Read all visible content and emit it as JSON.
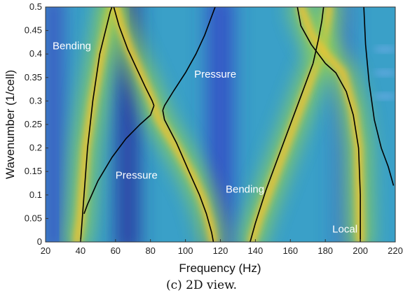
{
  "chart_data": {
    "type": "heatmap",
    "title": "",
    "xlabel": "Frequency (Hz)",
    "ylabel": "Wavenumber (1/cell)",
    "xlim": [
      20,
      220
    ],
    "ylim": [
      0,
      0.5
    ],
    "xticks": [
      "20",
      "40",
      "60",
      "80",
      "100",
      "120",
      "140",
      "160",
      "180",
      "200",
      "220"
    ],
    "yticks": [
      "0",
      "0.05",
      "0.1",
      "0.15",
      "0.2",
      "0.25",
      "0.3",
      "0.35",
      "0.4",
      "0.45",
      "0.5"
    ],
    "grid": false,
    "colormap": "parula",
    "background_color": "#3aa0c8",
    "curve_color": "#000000",
    "ridges": [
      {
        "x": [
          38,
          40,
          41,
          43,
          47,
          52,
          56,
          58
        ],
        "y": [
          0.0,
          0.05,
          0.1,
          0.2,
          0.3,
          0.4,
          0.47,
          0.5
        ]
      },
      {
        "x": [
          60,
          63,
          68,
          74,
          80,
          82,
          85,
          95,
          104,
          110,
          114,
          116
        ],
        "y": [
          0.5,
          0.46,
          0.41,
          0.36,
          0.31,
          0.29,
          0.26,
          0.2,
          0.14,
          0.09,
          0.04,
          0.0
        ]
      },
      {
        "x": [
          138,
          142,
          150,
          158,
          166,
          172,
          178,
          180,
          182
        ],
        "y": [
          0.0,
          0.05,
          0.13,
          0.21,
          0.29,
          0.35,
          0.4,
          0.45,
          0.5
        ]
      },
      {
        "x": [
          166,
          172,
          180,
          190,
          196,
          199,
          200
        ],
        "y": [
          0.5,
          0.44,
          0.4,
          0.36,
          0.28,
          0.2,
          0.0
        ]
      }
    ],
    "curves": [
      {
        "x": [
          40,
          41,
          42,
          44,
          47,
          51,
          55,
          57,
          58
        ],
        "y": [
          0.0,
          0.05,
          0.1,
          0.2,
          0.3,
          0.4,
          0.46,
          0.49,
          0.5
        ]
      },
      {
        "x": [
          42,
          44,
          50,
          58,
          66,
          74,
          80,
          82
        ],
        "y": [
          0.06,
          0.08,
          0.13,
          0.18,
          0.22,
          0.25,
          0.27,
          0.29
        ]
      },
      {
        "x": [
          59,
          62,
          67,
          72,
          77,
          81,
          82
        ],
        "y": [
          0.5,
          0.46,
          0.41,
          0.37,
          0.33,
          0.3,
          0.29
        ]
      },
      {
        "x": [
          87,
          88,
          93,
          100,
          106,
          111,
          115,
          117
        ],
        "y": [
          0.28,
          0.29,
          0.32,
          0.36,
          0.4,
          0.44,
          0.48,
          0.5
        ]
      },
      {
        "x": [
          87,
          88,
          95,
          102,
          108,
          112,
          115,
          116
        ],
        "y": [
          0.28,
          0.26,
          0.21,
          0.15,
          0.1,
          0.06,
          0.02,
          0.0
        ]
      },
      {
        "x": [
          137,
          140,
          146,
          153,
          160,
          166,
          171,
          173
        ],
        "y": [
          0.0,
          0.04,
          0.11,
          0.18,
          0.25,
          0.31,
          0.36,
          0.38
        ]
      },
      {
        "x": [
          173,
          176,
          178,
          179
        ],
        "y": [
          0.38,
          0.43,
          0.47,
          0.5
        ]
      },
      {
        "x": [
          164,
          166,
          172,
          178,
          180
        ],
        "y": [
          0.5,
          0.46,
          0.42,
          0.39,
          0.38
        ]
      },
      {
        "x": [
          180,
          186,
          192,
          196,
          199,
          200,
          200
        ],
        "y": [
          0.38,
          0.36,
          0.32,
          0.27,
          0.2,
          0.1,
          0.0
        ]
      },
      {
        "x": [
          202,
          203,
          205,
          208,
          212,
          216,
          219
        ],
        "y": [
          0.5,
          0.42,
          0.34,
          0.26,
          0.2,
          0.16,
          0.12
        ]
      }
    ],
    "annotations": [
      {
        "text": "Bending",
        "x": 24,
        "y": 0.41
      },
      {
        "text": "Pressure",
        "x": 105,
        "y": 0.35
      },
      {
        "text": "Pressure",
        "x": 60,
        "y": 0.135
      },
      {
        "text": "Bending",
        "x": 123,
        "y": 0.105
      },
      {
        "text": "Local",
        "x": 184,
        "y": 0.02
      }
    ]
  },
  "caption": "(c) 2D view."
}
